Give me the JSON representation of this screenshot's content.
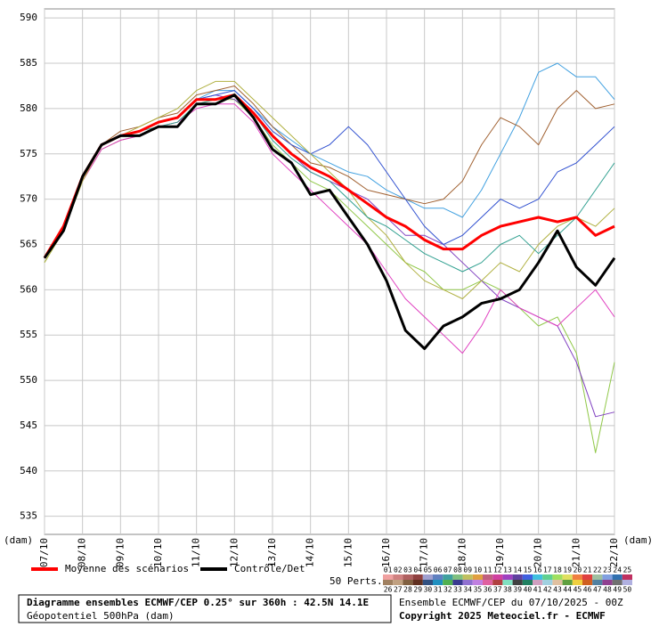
{
  "chart_data": {
    "type": "line",
    "y_unit_left": "(dam)",
    "y_unit_right": "(dam)",
    "x": [
      0,
      12,
      24,
      36,
      48,
      60,
      72,
      84,
      96,
      108,
      120,
      132,
      144,
      156,
      168,
      180,
      192,
      204,
      216,
      228,
      240,
      252,
      264,
      276,
      288,
      300,
      312,
      324,
      336,
      348,
      360
    ],
    "xlim": [
      0,
      360
    ],
    "xticks": [
      {
        "value": 0,
        "label": "07/10"
      },
      {
        "value": 24,
        "label": "08/10"
      },
      {
        "value": 48,
        "label": "09/10"
      },
      {
        "value": 72,
        "label": "10/10"
      },
      {
        "value": 96,
        "label": "11/10"
      },
      {
        "value": 120,
        "label": "12/10"
      },
      {
        "value": 144,
        "label": "13/10"
      },
      {
        "value": 168,
        "label": "14/10"
      },
      {
        "value": 192,
        "label": "15/10"
      },
      {
        "value": 216,
        "label": "16/10"
      },
      {
        "value": 240,
        "label": "17/10"
      },
      {
        "value": 264,
        "label": "18/10"
      },
      {
        "value": 288,
        "label": "19/10"
      },
      {
        "value": 312,
        "label": "20/10"
      },
      {
        "value": 336,
        "label": "21/10"
      },
      {
        "value": 360,
        "label": "22/10"
      }
    ],
    "ylim": [
      533,
      591
    ],
    "yticks": [
      535,
      540,
      545,
      550,
      555,
      560,
      565,
      570,
      575,
      580,
      585,
      590
    ],
    "grid": true,
    "perturbations": [
      {
        "color": "#40a0e0",
        "values": [
          563.5,
          567,
          572.5,
          576,
          577,
          577.5,
          578.5,
          579,
          581,
          582,
          582,
          580,
          578,
          576.5,
          575,
          574,
          573,
          572.5,
          571,
          570,
          569,
          569,
          568,
          571,
          575,
          579,
          584,
          585,
          583.5,
          583.5,
          581
        ]
      },
      {
        "color": "#90c848",
        "values": [
          563,
          566.5,
          572,
          575.5,
          576.5,
          577,
          578,
          578.5,
          580.5,
          581,
          581,
          579,
          576,
          574,
          572,
          571,
          569,
          567,
          565,
          563,
          562,
          560,
          560,
          561,
          560,
          558,
          556,
          557,
          553,
          542,
          552
        ]
      },
      {
        "color": "#8040c0",
        "values": [
          563.5,
          567,
          572.5,
          576,
          577,
          577.5,
          578.5,
          579,
          581,
          581.5,
          581,
          579.5,
          577,
          575,
          573,
          572,
          571,
          570,
          568,
          566,
          566,
          565,
          563,
          561,
          559,
          558,
          557,
          556,
          552,
          546,
          546.5
        ]
      },
      {
        "color": "#a06030",
        "values": [
          563.5,
          567,
          572.5,
          576,
          577.5,
          578,
          579,
          579.5,
          581.5,
          582,
          582.5,
          580.5,
          578,
          576,
          574,
          573.5,
          572.5,
          571,
          570.5,
          570,
          569.5,
          570,
          572,
          576,
          579,
          578,
          576,
          580,
          582,
          580,
          580.5
        ]
      },
      {
        "color": "#e040c0",
        "values": [
          563.5,
          567,
          572,
          575.5,
          576.5,
          577,
          578,
          578.5,
          580,
          580.5,
          580.5,
          578.5,
          575,
          573,
          571,
          569,
          567,
          565,
          562,
          559,
          557,
          555,
          553,
          556,
          560,
          558,
          557,
          556,
          558,
          560,
          557
        ]
      },
      {
        "color": "#3050d0",
        "values": [
          563.5,
          567,
          572.5,
          576,
          577,
          577.5,
          578.5,
          579,
          581,
          581.5,
          582,
          580,
          577.5,
          576,
          575,
          576,
          578,
          576,
          573,
          570,
          567,
          565,
          566,
          568,
          570,
          569,
          570,
          573,
          574,
          576,
          578
        ]
      },
      {
        "color": "#b0b040",
        "values": [
          563,
          566.5,
          572,
          576,
          577,
          578,
          579,
          580,
          582,
          583,
          583,
          581,
          579,
          577,
          575,
          573,
          571,
          568,
          566,
          563,
          561,
          560,
          559,
          561,
          563,
          562,
          565,
          567,
          568,
          567,
          569
        ]
      },
      {
        "color": "#30a090",
        "values": [
          563.5,
          567,
          572.5,
          576,
          577,
          577.5,
          578,
          578.5,
          580.5,
          581,
          581.5,
          579.5,
          576.5,
          574.5,
          573,
          572,
          570,
          568,
          567,
          565.5,
          564,
          563,
          562,
          563,
          565,
          566,
          564,
          566,
          568,
          571,
          574
        ]
      }
    ],
    "series": [
      {
        "name": "Moyenne des scénarios",
        "color": "#ff0000",
        "values": [
          563.5,
          567,
          572.5,
          576,
          577,
          577.5,
          578.5,
          579,
          581,
          581,
          581.5,
          579.5,
          577,
          575,
          573.5,
          572.5,
          571,
          569.5,
          568,
          567,
          565.5,
          564.5,
          564.5,
          566,
          567,
          567.5,
          568,
          567.5,
          568,
          566,
          567
        ]
      },
      {
        "name": "Contrôle/Det",
        "color": "#000000",
        "values": [
          563.5,
          566.5,
          572.5,
          576,
          577,
          577,
          578,
          578,
          580.5,
          580.5,
          581.5,
          579,
          575.5,
          574,
          570.5,
          571,
          568,
          565,
          561,
          555.5,
          553.5,
          556,
          557,
          558.5,
          559,
          560,
          563,
          566.5,
          562.5,
          560.5,
          563.5
        ]
      }
    ],
    "perts_label": "50 Perts.",
    "legend_boxes": [
      {
        "label": "01",
        "color": "#f0a0a0"
      },
      {
        "label": "02",
        "color": "#d08080"
      },
      {
        "label": "03",
        "color": "#b06060"
      },
      {
        "label": "04",
        "color": "#904040"
      },
      {
        "label": "05",
        "color": "#a0a0d0"
      },
      {
        "label": "06",
        "color": "#6080c0"
      },
      {
        "label": "07",
        "color": "#40a0a0"
      },
      {
        "label": "08",
        "color": "#80c080"
      },
      {
        "label": "09",
        "color": "#c0c060"
      },
      {
        "label": "10",
        "color": "#e0a040"
      },
      {
        "label": "11",
        "color": "#c06080"
      },
      {
        "label": "12",
        "color": "#d040a0"
      },
      {
        "label": "13",
        "color": "#a040c0"
      },
      {
        "label": "14",
        "color": "#6040a0"
      },
      {
        "label": "15",
        "color": "#4060e0"
      },
      {
        "label": "16",
        "color": "#40c0e0"
      },
      {
        "label": "17",
        "color": "#60d090"
      },
      {
        "label": "18",
        "color": "#a0e060"
      },
      {
        "label": "19",
        "color": "#e0e060"
      },
      {
        "label": "20",
        "color": "#f08040"
      },
      {
        "label": "21",
        "color": "#e04040"
      },
      {
        "label": "22",
        "color": "#a0c0a0"
      },
      {
        "label": "23",
        "color": "#80a0e0"
      },
      {
        "label": "24",
        "color": "#3070b0"
      },
      {
        "label": "25",
        "color": "#c03060"
      },
      {
        "label": "26",
        "color": "#a08060"
      },
      {
        "label": "27",
        "color": "#c0a080"
      },
      {
        "label": "28",
        "color": "#806040"
      },
      {
        "label": "29",
        "color": "#603020"
      },
      {
        "label": "30",
        "color": "#305080"
      },
      {
        "label": "31",
        "color": "#2090c0"
      },
      {
        "label": "32",
        "color": "#50b050"
      },
      {
        "label": "33",
        "color": "#3a3a90"
      },
      {
        "label": "34",
        "color": "#9070d0"
      },
      {
        "label": "35",
        "color": "#c080e0"
      },
      {
        "label": "36",
        "color": "#e060a0"
      },
      {
        "label": "37",
        "color": "#b04040"
      },
      {
        "label": "38",
        "color": "#80e0c0"
      },
      {
        "label": "39",
        "color": "#404040"
      },
      {
        "label": "40",
        "color": "#208060"
      },
      {
        "label": "41",
        "color": "#d0a0c0"
      },
      {
        "label": "42",
        "color": "#a0d0e0"
      },
      {
        "label": "43",
        "color": "#e0c0a0"
      },
      {
        "label": "44",
        "color": "#60a040"
      },
      {
        "label": "45",
        "color": "#f0d040"
      },
      {
        "label": "46",
        "color": "#d06020"
      },
      {
        "label": "47",
        "color": "#5080a0"
      },
      {
        "label": "48",
        "color": "#904090"
      },
      {
        "label": "49",
        "color": "#707070"
      },
      {
        "label": "50",
        "color": "#b0b0e0"
      }
    ],
    "title": "Diagramme ensembles ECMWF/CEP 0.25° sur 360h : 42.5N 14.1E",
    "subtitle": "Géopotentiel 500hPa (dam)",
    "run_info": "Ensemble ECMWF/CEP du 07/10/2025 - 00Z",
    "copyright": "Copyright 2025 Meteociel.fr - ECMWF"
  }
}
